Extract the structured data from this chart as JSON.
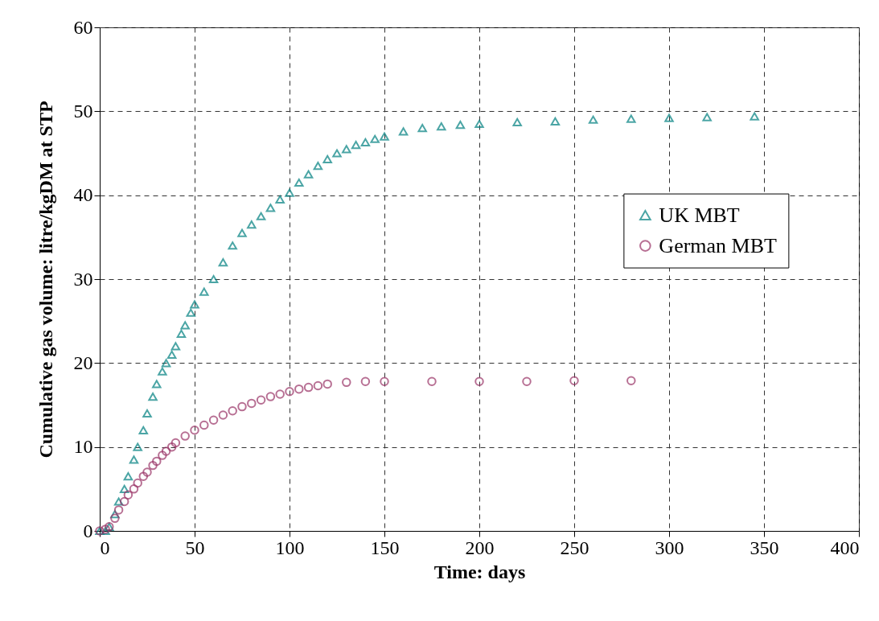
{
  "chart_data": {
    "type": "scatter",
    "xlabel": "Time: days",
    "ylabel": "Cumulative gas volume: litre/kgDM at STP",
    "xlim": [
      0,
      400
    ],
    "ylim": [
      0,
      60
    ],
    "xticks": [
      0,
      50,
      100,
      150,
      200,
      250,
      300,
      350,
      400
    ],
    "yticks": [
      0,
      10,
      20,
      30,
      40,
      50,
      60
    ],
    "grid": true,
    "legend": "right",
    "series": [
      {
        "name": "UK MBT",
        "color": "#008080",
        "marker": "triangle",
        "x": [
          0,
          3,
          5,
          8,
          10,
          13,
          15,
          18,
          20,
          23,
          25,
          28,
          30,
          33,
          35,
          38,
          40,
          43,
          45,
          48,
          50,
          55,
          60,
          65,
          70,
          75,
          80,
          85,
          90,
          95,
          100,
          105,
          110,
          115,
          120,
          125,
          130,
          135,
          140,
          145,
          150,
          160,
          170,
          180,
          190,
          200,
          220,
          240,
          260,
          280,
          300,
          320,
          345
        ],
        "values": [
          0,
          0,
          0.5,
          2,
          3.5,
          5,
          6.5,
          8.5,
          10,
          12,
          14,
          16,
          17.5,
          19,
          20,
          21,
          22,
          23.5,
          24.5,
          26,
          27,
          28.5,
          30,
          32,
          34,
          35.5,
          36.5,
          37.5,
          38.5,
          39.5,
          40.3,
          41.5,
          42.5,
          43.5,
          44.3,
          45,
          45.5,
          46,
          46.3,
          46.7,
          47,
          47.6,
          48,
          48.2,
          48.4,
          48.5,
          48.7,
          48.8,
          49,
          49.1,
          49.2,
          49.3,
          49.4
        ]
      },
      {
        "name": "German MBT",
        "color": "#993366",
        "marker": "circle",
        "x": [
          0,
          3,
          5,
          8,
          10,
          13,
          15,
          18,
          20,
          23,
          25,
          28,
          30,
          33,
          35,
          38,
          40,
          45,
          50,
          55,
          60,
          65,
          70,
          75,
          80,
          85,
          90,
          95,
          100,
          105,
          110,
          115,
          120,
          130,
          140,
          150,
          175,
          200,
          225,
          250,
          280
        ],
        "values": [
          0,
          0.2,
          0.5,
          1.5,
          2.5,
          3.5,
          4.3,
          5,
          5.7,
          6.5,
          7,
          7.8,
          8.3,
          9,
          9.5,
          10,
          10.5,
          11.3,
          12,
          12.6,
          13.2,
          13.8,
          14.3,
          14.8,
          15.2,
          15.6,
          16,
          16.3,
          16.6,
          16.9,
          17.1,
          17.3,
          17.5,
          17.7,
          17.8,
          17.8,
          17.8,
          17.8,
          17.8,
          17.9,
          17.9
        ]
      }
    ]
  }
}
